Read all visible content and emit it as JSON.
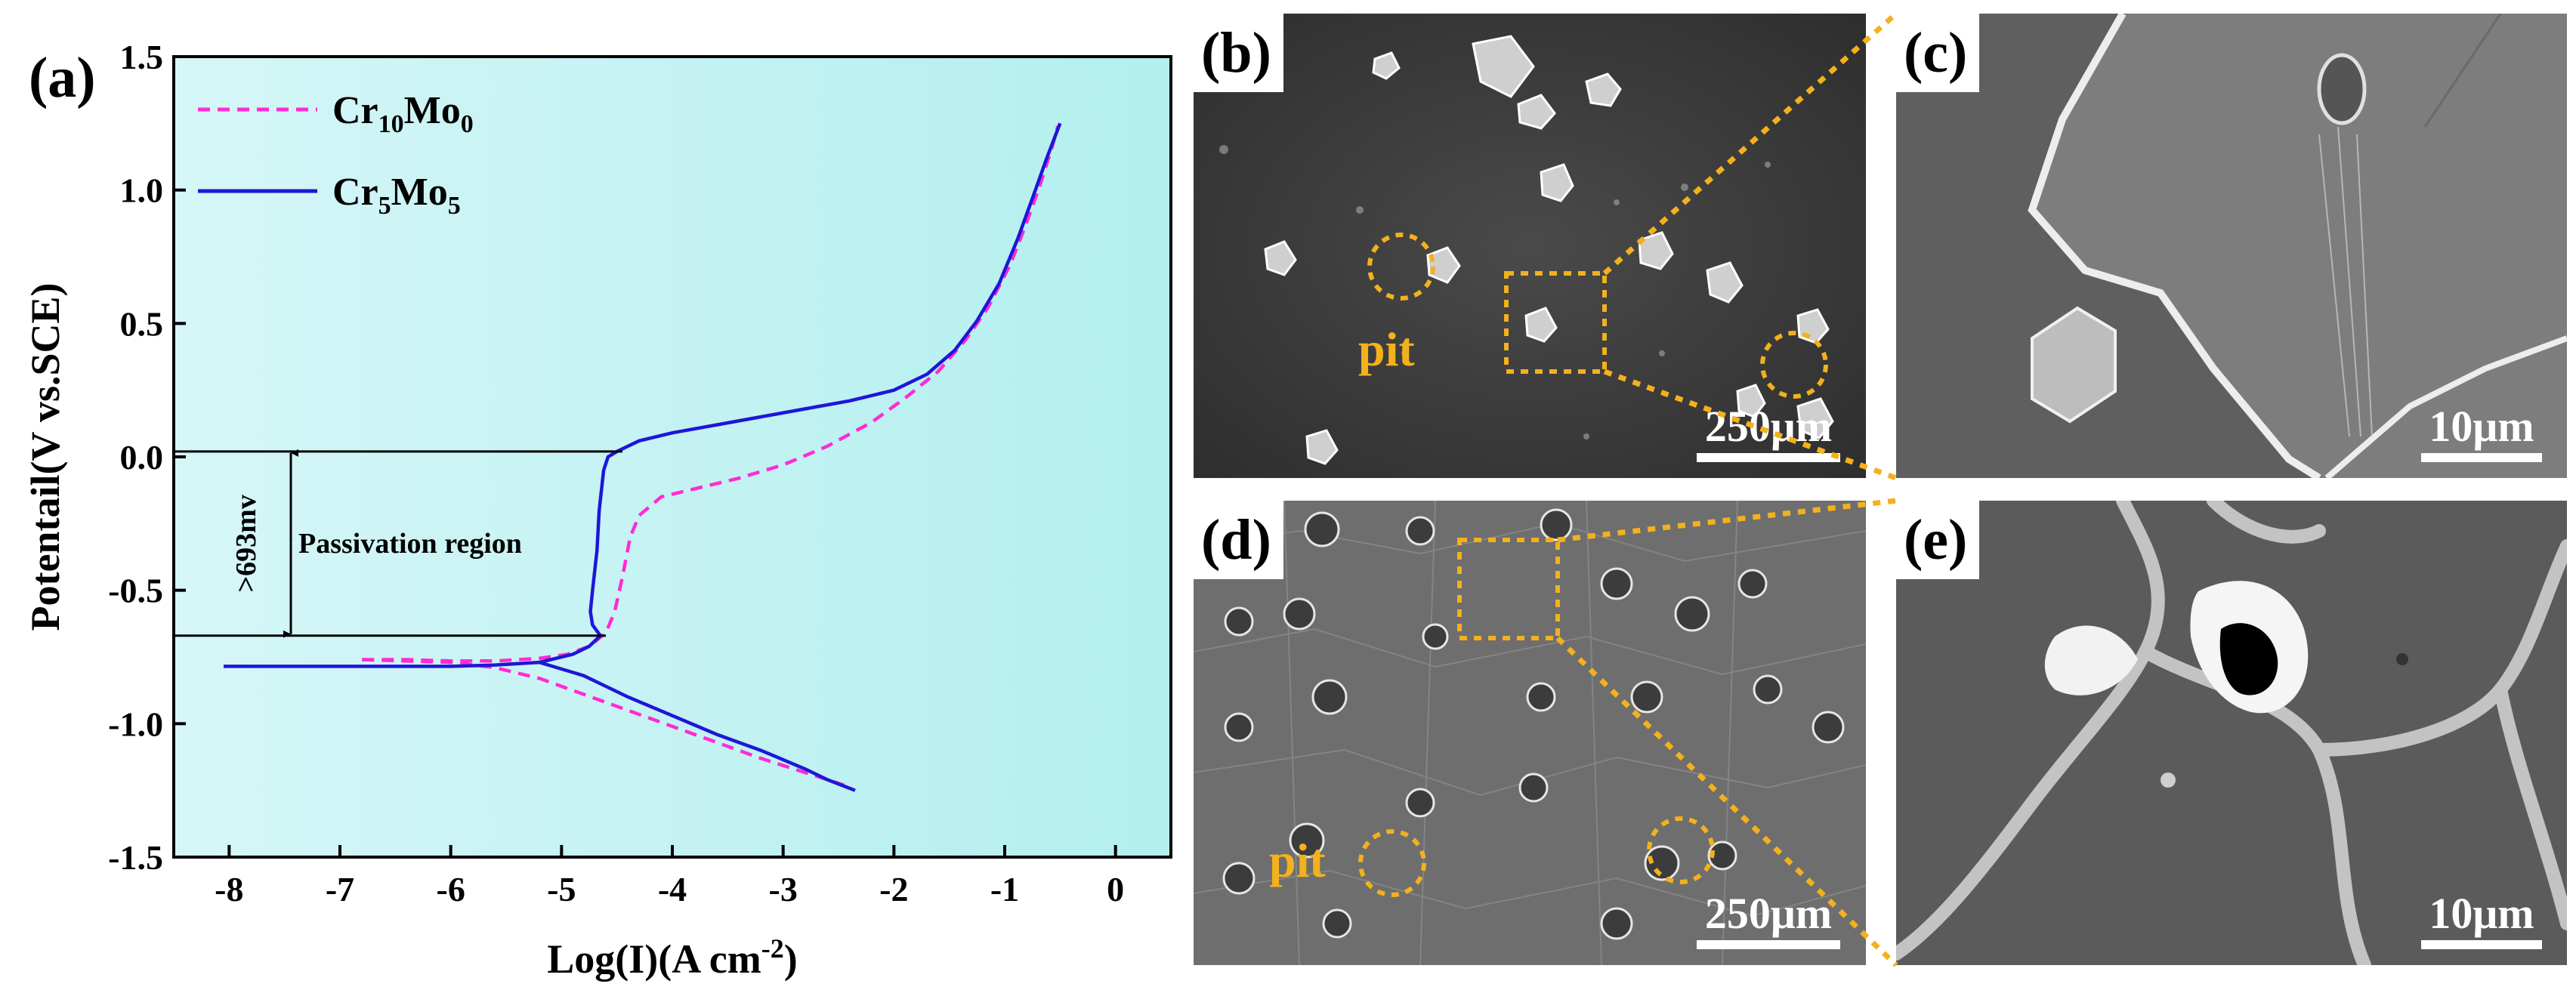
{
  "panel_labels": {
    "a": "(a)",
    "b": "(b)",
    "c": "(c)",
    "d": "(d)",
    "e": "(e)"
  },
  "scale_bars": {
    "b": "250μm",
    "c": "10μm",
    "d": "250μm",
    "e": "10μm"
  },
  "pit_label": "pit",
  "colors": {
    "plot_bg_left": "#d6f6f7",
    "plot_bg_right": "#b3efef",
    "cr10": "#ff2bd4",
    "cr5": "#1e16d8",
    "annotation": "#f3b11d"
  },
  "chart_data": {
    "type": "line",
    "title": "",
    "xlabel_base": "Log(I)(A cm",
    "xlabel_sup": "-2",
    "xlabel_end": ")",
    "ylabel": "Potentail(V vs.SCE)",
    "xlim": [
      -8.5,
      0.5
    ],
    "ylim": [
      -1.5,
      1.5
    ],
    "xticks": [
      -8,
      -7,
      -6,
      -5,
      -4,
      -3,
      -2,
      -1,
      0
    ],
    "xtick_labels": [
      "-8",
      "-7",
      "-6",
      "-5",
      "-4",
      "-3",
      "-2",
      "-1",
      "0"
    ],
    "yticks": [
      -1.5,
      -1.0,
      -0.5,
      0.0,
      0.5,
      1.0,
      1.5
    ],
    "ytick_labels": [
      "-1.5",
      "-1.0",
      "-0.5",
      "0.0",
      "0.5",
      "1.0",
      "1.5"
    ],
    "legend": [
      {
        "base": "Cr",
        "sub1": "10",
        "mid": "Mo",
        "sub2": "0",
        "style": "dashed"
      },
      {
        "base": "Cr",
        "sub1": "5",
        "mid": "Mo",
        "sub2": "5",
        "style": "solid"
      }
    ],
    "series": [
      {
        "name": "Cr10Mo0",
        "points": [
          [
            -6.8,
            -0.76
          ],
          [
            -6.4,
            -0.76
          ],
          [
            -6.0,
            -0.765
          ],
          [
            -5.6,
            -0.765
          ],
          [
            -5.2,
            -0.755
          ],
          [
            -4.95,
            -0.74
          ],
          [
            -4.75,
            -0.71
          ],
          [
            -4.6,
            -0.66
          ],
          [
            -4.52,
            -0.58
          ],
          [
            -4.45,
            -0.45
          ],
          [
            -4.38,
            -0.3
          ],
          [
            -4.3,
            -0.22
          ],
          [
            -4.1,
            -0.15
          ],
          [
            -3.8,
            -0.12
          ],
          [
            -3.4,
            -0.08
          ],
          [
            -3.0,
            -0.03
          ],
          [
            -2.6,
            0.04
          ],
          [
            -2.2,
            0.13
          ],
          [
            -1.9,
            0.22
          ],
          [
            -1.6,
            0.32
          ],
          [
            -1.35,
            0.44
          ],
          [
            -1.15,
            0.56
          ],
          [
            -0.95,
            0.72
          ],
          [
            -0.8,
            0.88
          ],
          [
            -0.68,
            1.02
          ],
          [
            -0.58,
            1.15
          ],
          [
            -0.52,
            1.24
          ]
        ]
      },
      {
        "name": "Cr10Mo0_cathodic",
        "points": [
          [
            -6.8,
            -0.76
          ],
          [
            -6.0,
            -0.77
          ],
          [
            -5.6,
            -0.79
          ],
          [
            -5.2,
            -0.83
          ],
          [
            -4.8,
            -0.89
          ],
          [
            -4.4,
            -0.95
          ],
          [
            -4.0,
            -1.01
          ],
          [
            -3.6,
            -1.07
          ],
          [
            -3.2,
            -1.13
          ],
          [
            -2.9,
            -1.17
          ],
          [
            -2.6,
            -1.21
          ],
          [
            -2.45,
            -1.23
          ]
        ]
      },
      {
        "name": "Cr5Mo5",
        "points": [
          [
            -8.05,
            -0.785
          ],
          [
            -7.5,
            -0.785
          ],
          [
            -7.0,
            -0.785
          ],
          [
            -6.5,
            -0.785
          ],
          [
            -6.0,
            -0.785
          ],
          [
            -5.6,
            -0.78
          ],
          [
            -5.2,
            -0.77
          ],
          [
            -4.9,
            -0.74
          ],
          [
            -4.75,
            -0.71
          ],
          [
            -4.65,
            -0.67
          ],
          [
            -4.72,
            -0.63
          ],
          [
            -4.74,
            -0.58
          ],
          [
            -4.72,
            -0.5
          ],
          [
            -4.68,
            -0.35
          ],
          [
            -4.66,
            -0.2
          ],
          [
            -4.62,
            -0.05
          ],
          [
            -4.58,
            0.0
          ],
          [
            -4.5,
            0.02
          ],
          [
            -4.3,
            0.06
          ],
          [
            -4.0,
            0.09
          ],
          [
            -3.6,
            0.12
          ],
          [
            -3.2,
            0.15
          ],
          [
            -2.8,
            0.18
          ],
          [
            -2.4,
            0.21
          ],
          [
            -2.0,
            0.25
          ],
          [
            -1.7,
            0.31
          ],
          [
            -1.45,
            0.4
          ],
          [
            -1.25,
            0.51
          ],
          [
            -1.05,
            0.65
          ],
          [
            -0.88,
            0.82
          ],
          [
            -0.74,
            0.98
          ],
          [
            -0.62,
            1.12
          ],
          [
            -0.5,
            1.25
          ]
        ]
      },
      {
        "name": "Cr5Mo5_cathodic",
        "points": [
          [
            -5.2,
            -0.77
          ],
          [
            -4.8,
            -0.82
          ],
          [
            -4.4,
            -0.9
          ],
          [
            -4.0,
            -0.97
          ],
          [
            -3.6,
            -1.04
          ],
          [
            -3.2,
            -1.1
          ],
          [
            -2.8,
            -1.17
          ],
          [
            -2.6,
            -1.21
          ],
          [
            -2.35,
            -1.25
          ]
        ]
      }
    ],
    "annotation": {
      "text_region": "Passivation region",
      "text_value": ">693mv",
      "from": -0.67,
      "to": 0.02
    }
  }
}
